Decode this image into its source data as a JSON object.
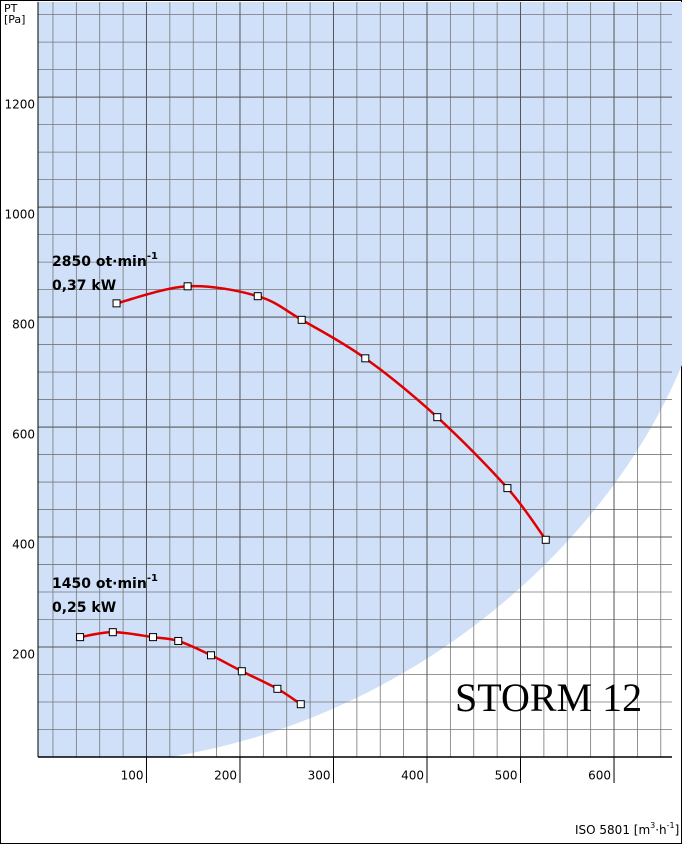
{
  "chart_data": {
    "type": "line",
    "title": "STORM 12",
    "y_label": {
      "text": "PT",
      "unit": "[Pa]"
    },
    "x_label": {
      "text": "ISO 5801 [m",
      "sup1": "3",
      "mid": "·h",
      "sup2": "-1",
      "end": "]"
    },
    "xlim": [
      -16,
      662
    ],
    "ylim": [
      0,
      1373
    ],
    "xticks": [
      100,
      200,
      300,
      400,
      500,
      600
    ],
    "yticks": [
      200,
      400,
      600,
      800,
      1000,
      1200
    ],
    "grid": true,
    "series": [
      {
        "name": "2850 ot·min",
        "sup": "-1",
        "power": "0,37 kW",
        "color": "#e00000",
        "x": [
          68,
          144,
          219,
          266,
          334,
          411,
          486,
          527
        ],
        "values": [
          825,
          856,
          838,
          795,
          725,
          618,
          489,
          395
        ]
      },
      {
        "name": "1450 ot·min",
        "sup": "-1",
        "power": "0,25 kW",
        "color": "#e00000",
        "x": [
          29,
          64,
          107,
          134,
          169,
          202,
          240,
          265
        ],
        "values": [
          218,
          227,
          218,
          211,
          185,
          156,
          124,
          96
        ]
      }
    ]
  }
}
